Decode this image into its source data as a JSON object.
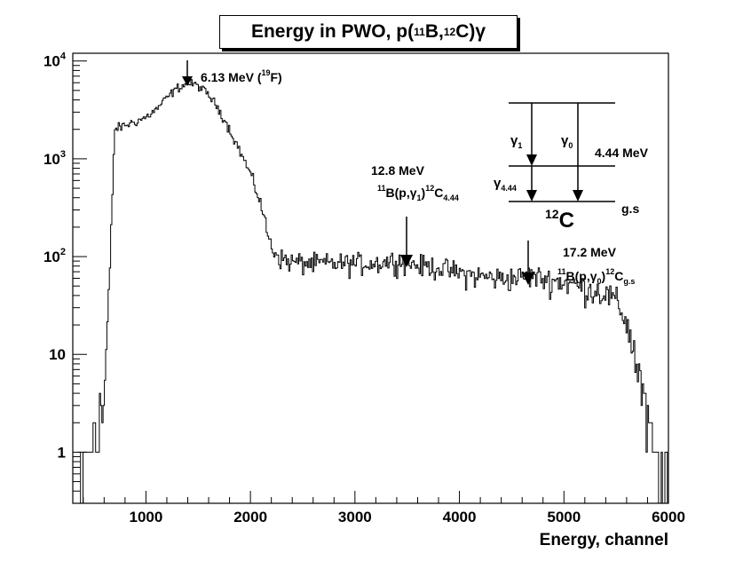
{
  "chart_data": {
    "type": "line",
    "title": "Energy in PWO, p(11B,12C)γ",
    "title_parts": {
      "prefix": "Energy in PWO, p(",
      "sup1": "11",
      "mid1": "B,",
      "sup2": "12",
      "mid2": "C)",
      "suffix": "γ"
    },
    "xlabel": "Energy, channel",
    "ylabel": "",
    "xscale": "linear",
    "yscale": "log",
    "xlim": [
      300,
      6000
    ],
    "ylim": [
      0.3,
      12000
    ],
    "grid": false,
    "legend": "none",
    "x_ticks": [
      {
        "value": 1000,
        "label": "1000"
      },
      {
        "value": 2000,
        "label": "2000"
      },
      {
        "value": 3000,
        "label": "3000"
      },
      {
        "value": 4000,
        "label": "4000"
      },
      {
        "value": 5000,
        "label": "5000"
      },
      {
        "value": 6000,
        "label": "6000"
      }
    ],
    "y_ticks": [
      {
        "value": 1,
        "label": "1"
      },
      {
        "value": 10,
        "label": "10"
      },
      {
        "value": 100,
        "label": "10",
        "exp": "2"
      },
      {
        "value": 1000,
        "label": "10",
        "exp": "3"
      },
      {
        "value": 10000,
        "label": "10",
        "exp": "4"
      }
    ],
    "series": [
      {
        "name": "PWO energy spectrum",
        "x": [
          350,
          400,
          450,
          500,
          550,
          600,
          650,
          700,
          750,
          800,
          900,
          1000,
          1100,
          1200,
          1300,
          1400,
          1450,
          1500,
          1600,
          1700,
          1800,
          1900,
          2000,
          2100,
          2150,
          2200,
          2300,
          2400,
          2600,
          2800,
          3000,
          3200,
          3400,
          3500,
          3600,
          3800,
          4000,
          4200,
          4400,
          4600,
          4700,
          4800,
          5000,
          5200,
          5400,
          5500,
          5600,
          5700,
          5800,
          5900,
          5950
        ],
        "y": [
          0.4,
          0.5,
          1.2,
          2,
          2.5,
          3.5,
          50,
          2000,
          2100,
          2200,
          2400,
          2650,
          3200,
          4200,
          5300,
          5900,
          5800,
          5600,
          4500,
          3200,
          2000,
          1200,
          700,
          350,
          200,
          125,
          95,
          88,
          85,
          85,
          86,
          86,
          92,
          88,
          82,
          78,
          68,
          63,
          60,
          62,
          64,
          60,
          55,
          48,
          42,
          35,
          22,
          8,
          2.5,
          0.6,
          0.4
        ]
      }
    ],
    "annotations": {
      "peak_19F": {
        "x": 1400,
        "label_main": "6.13 MeV (",
        "label_sup": "19",
        "label_end": "F)"
      },
      "peak_12_8": {
        "x": 3520,
        "energy": "12.8 MeV",
        "r_pre": "11",
        "r_mid": "B(p,γ",
        "r_sub1": "1",
        "r_close": ")",
        "r_sup2": "12",
        "r_end": "C",
        "r_sub2": "4.44"
      },
      "peak_17_2": {
        "x": 4700,
        "energy": "17.2 MeV",
        "r_pre": "11",
        "r_mid": "B(p,γ",
        "r_sub1": "0",
        "r_close": ")",
        "r_sup2": "12",
        "r_end": "C",
        "r_sub2": "g.s"
      },
      "level_scheme": {
        "gamma1": "γ",
        "gamma1_sub": "1",
        "gamma0": "γ",
        "gamma0_sub": "0",
        "gamma444": "γ",
        "gamma444_sub": "4.44",
        "level_444": "4.44 MeV",
        "level_gs": "g.s",
        "nucleus_sup": "12",
        "nucleus": "C"
      }
    }
  }
}
